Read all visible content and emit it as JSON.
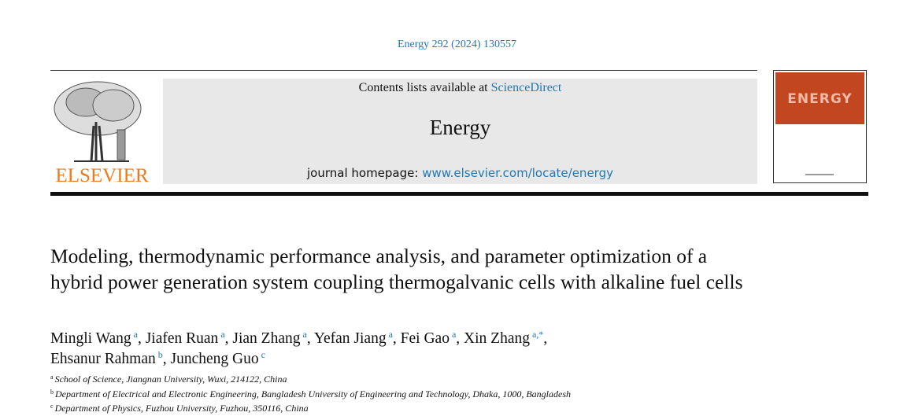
{
  "journal_ref": "Energy 292 (2024) 130557",
  "header": {
    "contents_prefix": "Contents lists available at ",
    "contents_link": "ScienceDirect",
    "journal_name": "Energy",
    "homepage_prefix": "journal homepage: ",
    "homepage_link": "www.elsevier.com/locate/energy",
    "publisher_logo": "ELSEVIER",
    "cover_word": "ENERGY"
  },
  "title": "Modeling, thermodynamic performance analysis, and parameter optimization of a hybrid power generation system coupling thermogalvanic cells with alkaline fuel cells",
  "authors": [
    {
      "name": "Mingli Wang",
      "aff": "a"
    },
    {
      "name": "Jiafen Ruan",
      "aff": "a"
    },
    {
      "name": "Jian Zhang",
      "aff": "a"
    },
    {
      "name": "Yefan Jiang",
      "aff": "a"
    },
    {
      "name": "Fei Gao",
      "aff": "a"
    },
    {
      "name": "Xin Zhang",
      "aff": "a,*"
    },
    {
      "name": "Ehsanur Rahman",
      "aff": "b"
    },
    {
      "name": "Juncheng Guo",
      "aff": "c"
    }
  ],
  "affiliations": [
    {
      "key": "a",
      "text": "School of Science, Jiangnan University, Wuxi, 214122, China"
    },
    {
      "key": "b",
      "text": "Department of Electrical and Electronic Engineering, Bangladesh University of Engineering and Technology, Dhaka, 1000, Bangladesh"
    },
    {
      "key": "c",
      "text": "Department of Physics, Fuzhou University, Fuzhou, 350116, China"
    }
  ],
  "colors": {
    "link": "#1f78b4",
    "elsevier": "#f07a1a",
    "cover": "#c24620"
  }
}
